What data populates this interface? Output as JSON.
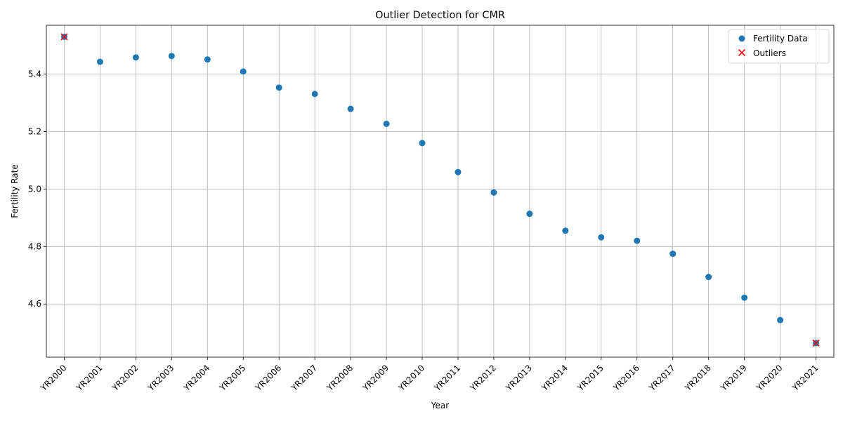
{
  "chart_data": {
    "type": "scatter",
    "title": "Outlier Detection for CMR",
    "xlabel": "Year",
    "ylabel": "Fertility Rate",
    "categories": [
      "YR2000",
      "YR2001",
      "YR2002",
      "YR2003",
      "YR2004",
      "YR2005",
      "YR2006",
      "YR2007",
      "YR2008",
      "YR2009",
      "YR2010",
      "YR2011",
      "YR2012",
      "YR2013",
      "YR2014",
      "YR2015",
      "YR2016",
      "YR2017",
      "YR2018",
      "YR2019",
      "YR2020",
      "YR2021"
    ],
    "ylim": [
      4.415,
      5.57
    ],
    "yticks": [
      4.6,
      4.8,
      5.0,
      5.2,
      5.4
    ],
    "ytick_labels": [
      "4.6",
      "4.8",
      "5.0",
      "5.2",
      "5.4"
    ],
    "grid": true,
    "legend_position": "top-right",
    "series": [
      {
        "name": "Fertility Data",
        "marker": "circle",
        "color": "#1f77b4",
        "values": [
          5.53,
          5.443,
          5.458,
          5.463,
          5.451,
          5.409,
          5.353,
          5.331,
          5.279,
          5.227,
          5.16,
          5.059,
          4.988,
          4.914,
          4.855,
          4.832,
          4.82,
          4.775,
          4.694,
          4.622,
          4.544,
          4.464
        ]
      },
      {
        "name": "Outliers",
        "marker": "x",
        "color": "#ff0000",
        "points": [
          {
            "category": "YR2000",
            "value": 5.53
          },
          {
            "category": "YR2021",
            "value": 4.464
          }
        ]
      }
    ]
  }
}
